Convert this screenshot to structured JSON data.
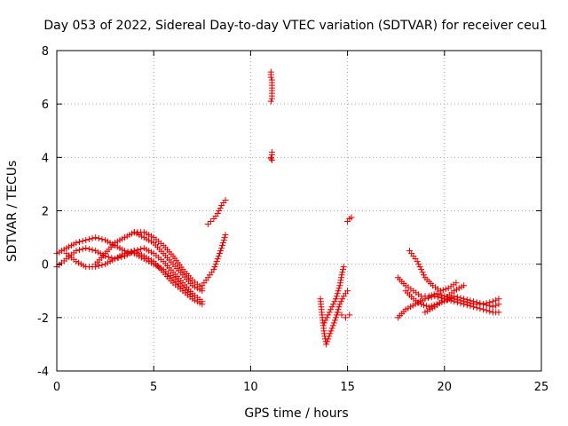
{
  "chart_data": {
    "type": "scatter",
    "title": "Day 053 of 2022, Sidereal Day-to-day VTEC variation (SDTVAR) for receiver ceu1",
    "xlabel": "GPS time / hours",
    "ylabel": "SDTVAR / TECUs",
    "xlim": [
      0,
      25
    ],
    "ylim": [
      -4,
      8
    ],
    "xticks": [
      "0",
      "5",
      "10",
      "15",
      "20",
      "25"
    ],
    "yticks": [
      "-4",
      "-2",
      "0",
      "2",
      "4",
      "6",
      "8"
    ],
    "grid": true,
    "marker": "plus",
    "colors": {
      "series": "#dd0000",
      "grid": "#a0a0a0",
      "axis": "#000000"
    },
    "tracks": [
      {
        "x": [
          0.0,
          0.5,
          1.0,
          1.5,
          2.0,
          2.5,
          3.0,
          3.5,
          4.0,
          4.5,
          5.0,
          5.5,
          6.0,
          6.5,
          7.0
        ],
        "y": [
          0.4,
          0.6,
          0.8,
          0.9,
          1.0,
          0.9,
          0.7,
          0.5,
          0.4,
          0.2,
          0.0,
          -0.2,
          -0.5,
          -0.9,
          -1.2
        ]
      },
      {
        "x": [
          0.0,
          0.5,
          1.0,
          1.5,
          2.0,
          2.5,
          3.0,
          3.5,
          4.0,
          4.5,
          5.0,
          5.5,
          6.0,
          6.5,
          7.0,
          7.5
        ],
        "y": [
          -0.1,
          0.2,
          0.5,
          0.6,
          0.5,
          0.3,
          0.2,
          0.3,
          0.5,
          0.6,
          0.4,
          0.1,
          -0.3,
          -0.7,
          -1.1,
          -1.4
        ]
      },
      {
        "x": [
          0.5,
          1.0,
          1.5,
          2.0,
          2.5,
          3.0,
          3.5,
          4.0,
          4.5,
          5.0,
          5.5,
          6.0,
          6.5,
          7.0,
          7.5
        ],
        "y": [
          0.4,
          0.1,
          -0.1,
          -0.1,
          0.0,
          0.2,
          0.4,
          0.5,
          0.3,
          0.1,
          -0.3,
          -0.7,
          -1.0,
          -1.3,
          -1.5
        ]
      },
      {
        "x": [
          2.0,
          2.5,
          3.0,
          3.5,
          4.0,
          4.5,
          5.0,
          5.5,
          6.0,
          6.5,
          7.0,
          7.5
        ],
        "y": [
          0.0,
          0.4,
          0.8,
          1.0,
          1.2,
          1.0,
          0.8,
          0.4,
          0.0,
          -0.4,
          -0.8,
          -1.0
        ]
      },
      {
        "x": [
          4.0,
          4.5,
          5.0,
          5.5,
          6.0,
          6.5,
          7.0,
          7.5
        ],
        "y": [
          1.2,
          1.2,
          1.0,
          0.7,
          0.3,
          -0.2,
          -0.6,
          -0.9
        ]
      },
      {
        "x": [
          7.5,
          7.8,
          8.1,
          8.3,
          8.5,
          8.7
        ],
        "y": [
          -0.8,
          -0.5,
          -0.2,
          0.2,
          0.6,
          1.1
        ]
      },
      {
        "x": [
          7.8,
          8.1,
          8.3,
          8.5,
          8.7
        ],
        "y": [
          1.5,
          1.7,
          1.9,
          2.2,
          2.4
        ]
      },
      {
        "x": [
          11.05,
          11.05,
          11.05,
          11.1,
          11.1,
          11.1,
          11.05,
          11.1,
          11.1,
          11.05,
          11.1,
          11.05
        ],
        "y": [
          7.2,
          7.1,
          7.0,
          6.9,
          6.4,
          6.2,
          6.1,
          4.2,
          4.1,
          4.0,
          3.9,
          3.95
        ]
      },
      {
        "x": [
          13.6,
          13.7,
          13.8,
          13.9,
          14.0,
          14.2,
          14.4,
          14.6,
          14.8,
          15.0
        ],
        "y": [
          -1.3,
          -2.0,
          -2.6,
          -3.0,
          -2.8,
          -2.4,
          -2.0,
          -1.5,
          -1.2,
          -1.0
        ]
      },
      {
        "x": [
          13.8,
          14.0,
          14.2,
          14.4,
          14.6,
          14.7,
          14.8
        ],
        "y": [
          -2.2,
          -1.9,
          -1.6,
          -1.3,
          -0.8,
          -0.4,
          -0.1
        ]
      },
      {
        "x": [
          14.5,
          14.7,
          14.9,
          15.1
        ],
        "y": [
          -1.8,
          -1.9,
          -2.0,
          -1.9
        ]
      },
      {
        "x": [
          15.0,
          15.1,
          15.2
        ],
        "y": [
          1.6,
          1.7,
          1.75
        ]
      },
      {
        "x": [
          17.6,
          18.0,
          18.5,
          19.0,
          19.5,
          20.0,
          20.5,
          21.0,
          21.5,
          22.0,
          22.5,
          22.8
        ],
        "y": [
          -2.0,
          -1.7,
          -1.5,
          -1.3,
          -1.2,
          -1.3,
          -1.4,
          -1.5,
          -1.6,
          -1.7,
          -1.8,
          -1.8
        ]
      },
      {
        "x": [
          17.6,
          18.0,
          18.4,
          18.8,
          19.2,
          19.6,
          20.0,
          20.5,
          21.0,
          21.5,
          22.0,
          22.5,
          22.8
        ],
        "y": [
          -0.5,
          -0.8,
          -1.0,
          -1.2,
          -1.2,
          -1.1,
          -1.2,
          -1.3,
          -1.4,
          -1.5,
          -1.5,
          -1.6,
          -1.5
        ]
      },
      {
        "x": [
          18.0,
          18.4,
          18.8,
          19.2,
          19.6,
          20.0,
          20.5,
          21.0,
          21.5,
          22.0,
          22.5,
          22.8
        ],
        "y": [
          -1.0,
          -1.3,
          -1.5,
          -1.6,
          -1.5,
          -1.4,
          -1.2,
          -1.3,
          -1.4,
          -1.5,
          -1.4,
          -1.3
        ]
      },
      {
        "x": [
          18.2,
          18.4,
          18.6,
          18.8,
          19.0,
          19.4,
          19.8,
          20.2,
          20.6
        ],
        "y": [
          0.5,
          0.3,
          0.1,
          -0.2,
          -0.5,
          -0.8,
          -1.0,
          -0.9,
          -0.7
        ]
      },
      {
        "x": [
          19.0,
          19.5,
          20.0,
          20.5,
          21.0
        ],
        "y": [
          -1.8,
          -1.6,
          -1.3,
          -1.0,
          -0.8
        ]
      }
    ]
  }
}
